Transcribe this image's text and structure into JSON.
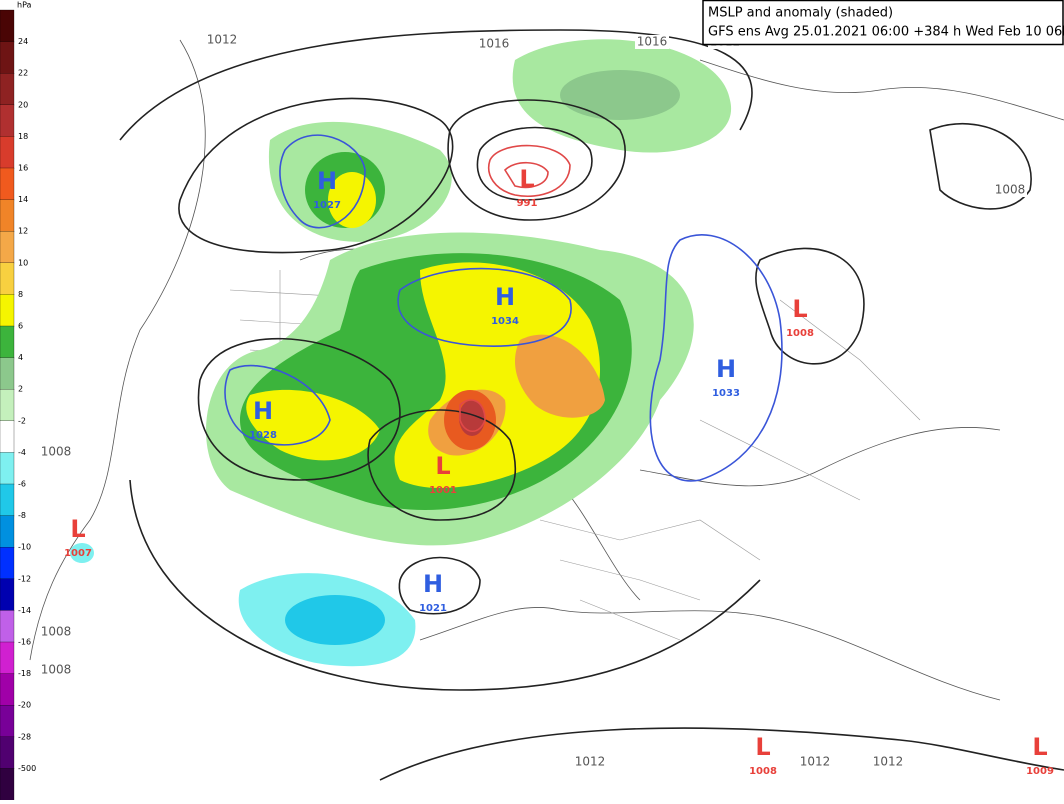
{
  "header": {
    "title": "MSLP and anomaly (shaded)",
    "subtitle": "GFS ens Avg 25.01.2021 06:00 +384 h Wed Feb 10 06hrs"
  },
  "colorbar": {
    "unit": "hPa",
    "labels": [
      24,
      22,
      20,
      18,
      16,
      14,
      12,
      10,
      8,
      6,
      4,
      2,
      -2,
      -4,
      -6,
      -8,
      -10,
      -12,
      -14,
      -16,
      -18,
      -20,
      -28,
      -500
    ],
    "colors": [
      "#4a0505",
      "#6e1414",
      "#8e2222",
      "#b03030",
      "#d83c2c",
      "#f05a1e",
      "#f08428",
      "#f4a848",
      "#f8d040",
      "#f5f500",
      "#3cb43c",
      "#8cc88c",
      "#c4f0bc",
      "#ffffff",
      "#7ef0f0",
      "#20c8e8",
      "#0090e0",
      "#0030ff",
      "#0000b0",
      "#c060e8",
      "#d020d0",
      "#a000a8",
      "#780098",
      "#500070",
      "#300040"
    ]
  },
  "system_colors": {
    "H": "#2f5ee0",
    "L": "#e8403a"
  },
  "systems": [
    {
      "type": "H",
      "value": 1027
    },
    {
      "type": "L",
      "value": 991
    },
    {
      "type": "H",
      "value": 1034
    },
    {
      "type": "H",
      "value": 1033
    },
    {
      "type": "L",
      "value": 1008
    },
    {
      "type": "H",
      "value": 1028
    },
    {
      "type": "L",
      "value": 1001
    },
    {
      "type": "L",
      "value": 1007
    },
    {
      "type": "H",
      "value": 1021
    },
    {
      "type": "L",
      "value": 1008
    },
    {
      "type": "L",
      "value": 1009
    }
  ],
  "isobar_labels": [
    1012,
    1016,
    1016,
    1012,
    1008,
    1008,
    1008,
    1008,
    1012,
    1012,
    1012
  ]
}
